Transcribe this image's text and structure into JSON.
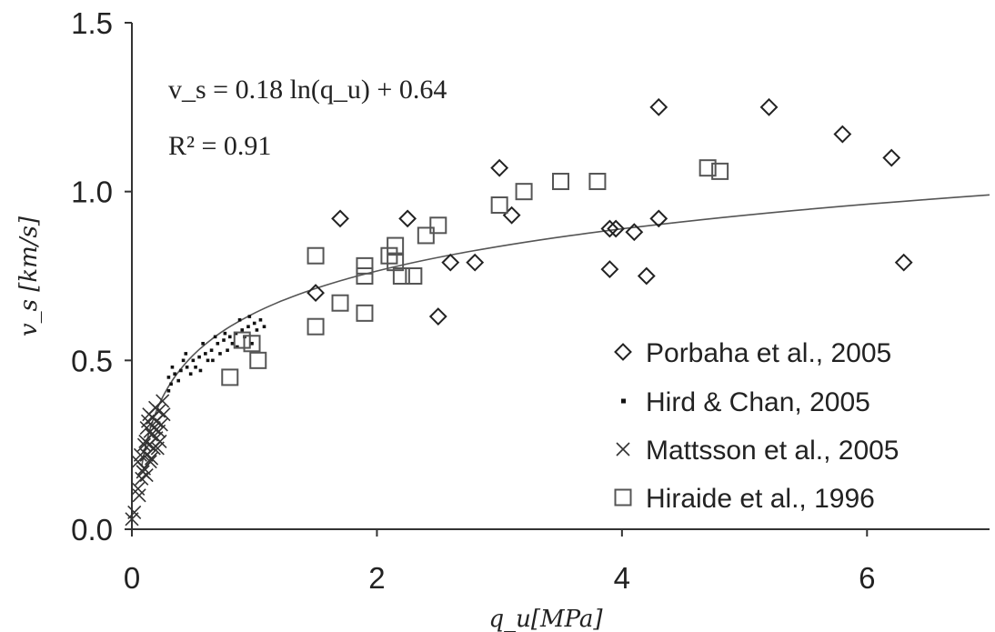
{
  "chart_data": {
    "type": "scatter",
    "title": "",
    "xlabel": "q_u[MPa]",
    "ylabel": "v_s [km/s]",
    "xlim": [
      0,
      7
    ],
    "ylim": [
      0,
      1.5
    ],
    "x_ticks": [
      "0",
      "2",
      "4",
      "6"
    ],
    "y_ticks": [
      "0.0",
      "0.5",
      "1.0",
      "1.5"
    ],
    "grid": false,
    "legend_position": "bottom-right",
    "annotations": {
      "equation": "v_s = 0.18 ln(q_u) + 0.64",
      "r_squared": "R² = 0.91"
    },
    "fit_line": {
      "name": "",
      "a": 0.18,
      "b": 0.64,
      "x_from": 0.08,
      "x_to": 7.0
    },
    "series": [
      {
        "name": "Porbaha et al., 2005",
        "marker": "diamond",
        "points": [
          [
            1.5,
            0.7
          ],
          [
            1.7,
            0.92
          ],
          [
            2.25,
            0.92
          ],
          [
            2.5,
            0.63
          ],
          [
            2.6,
            0.79
          ],
          [
            2.8,
            0.79
          ],
          [
            3.0,
            1.07
          ],
          [
            3.1,
            0.93
          ],
          [
            3.9,
            0.77
          ],
          [
            3.9,
            0.89
          ],
          [
            3.95,
            0.89
          ],
          [
            4.1,
            0.88
          ],
          [
            4.2,
            0.75
          ],
          [
            4.3,
            1.25
          ],
          [
            4.3,
            0.92
          ],
          [
            5.2,
            1.25
          ],
          [
            5.8,
            1.17
          ],
          [
            6.2,
            1.1
          ],
          [
            6.3,
            0.79
          ]
        ]
      },
      {
        "name": "Hird & Chan, 2005",
        "marker": "dot",
        "points": [
          [
            0.3,
            0.45
          ],
          [
            0.35,
            0.46
          ],
          [
            0.4,
            0.47
          ],
          [
            0.45,
            0.48
          ],
          [
            0.5,
            0.5
          ],
          [
            0.55,
            0.51
          ],
          [
            0.6,
            0.52
          ],
          [
            0.65,
            0.53
          ],
          [
            0.7,
            0.55
          ],
          [
            0.75,
            0.56
          ],
          [
            0.8,
            0.57
          ],
          [
            0.85,
            0.58
          ],
          [
            0.9,
            0.59
          ],
          [
            0.95,
            0.6
          ],
          [
            1.0,
            0.61
          ],
          [
            1.05,
            0.62
          ],
          [
            0.32,
            0.43
          ],
          [
            0.42,
            0.5
          ],
          [
            0.52,
            0.48
          ],
          [
            0.62,
            0.5
          ],
          [
            0.72,
            0.52
          ],
          [
            0.82,
            0.55
          ],
          [
            0.92,
            0.57
          ],
          [
            1.02,
            0.59
          ],
          [
            0.38,
            0.44
          ],
          [
            0.48,
            0.46
          ],
          [
            0.58,
            0.55
          ],
          [
            0.68,
            0.57
          ],
          [
            0.78,
            0.53
          ],
          [
            0.88,
            0.62
          ],
          [
            0.98,
            0.55
          ],
          [
            1.08,
            0.6
          ],
          [
            0.33,
            0.48
          ],
          [
            0.44,
            0.52
          ],
          [
            0.56,
            0.47
          ],
          [
            0.66,
            0.5
          ],
          [
            0.76,
            0.58
          ],
          [
            0.86,
            0.54
          ],
          [
            0.96,
            0.63
          ],
          [
            0.3,
            0.41
          ]
        ]
      },
      {
        "name": "Mattsson et al., 2005",
        "marker": "cross",
        "points": [
          [
            0.0,
            0.03
          ],
          [
            0.02,
            0.05
          ],
          [
            0.05,
            0.12
          ],
          [
            0.08,
            0.15
          ],
          [
            0.1,
            0.18
          ],
          [
            0.12,
            0.22
          ],
          [
            0.14,
            0.25
          ],
          [
            0.16,
            0.28
          ],
          [
            0.18,
            0.3
          ],
          [
            0.2,
            0.32
          ],
          [
            0.22,
            0.35
          ],
          [
            0.25,
            0.38
          ],
          [
            0.1,
            0.25
          ],
          [
            0.12,
            0.3
          ],
          [
            0.15,
            0.2
          ],
          [
            0.18,
            0.24
          ],
          [
            0.2,
            0.27
          ],
          [
            0.22,
            0.29
          ],
          [
            0.05,
            0.2
          ],
          [
            0.07,
            0.22
          ],
          [
            0.09,
            0.17
          ],
          [
            0.11,
            0.26
          ],
          [
            0.13,
            0.32
          ],
          [
            0.17,
            0.33
          ],
          [
            0.19,
            0.36
          ],
          [
            0.24,
            0.31
          ],
          [
            0.26,
            0.34
          ],
          [
            0.23,
            0.26
          ],
          [
            0.15,
            0.29
          ],
          [
            0.12,
            0.16
          ],
          [
            0.06,
            0.1
          ],
          [
            0.16,
            0.21
          ],
          [
            0.21,
            0.24
          ],
          [
            0.14,
            0.34
          ]
        ]
      },
      {
        "name": "Hiraide et al., 1996",
        "marker": "square",
        "points": [
          [
            0.8,
            0.45
          ],
          [
            0.9,
            0.56
          ],
          [
            0.98,
            0.55
          ],
          [
            1.03,
            0.5
          ],
          [
            1.5,
            0.81
          ],
          [
            1.5,
            0.6
          ],
          [
            1.7,
            0.67
          ],
          [
            1.9,
            0.78
          ],
          [
            1.9,
            0.75
          ],
          [
            1.9,
            0.64
          ],
          [
            2.1,
            0.81
          ],
          [
            2.15,
            0.84
          ],
          [
            2.15,
            0.79
          ],
          [
            2.2,
            0.75
          ],
          [
            2.3,
            0.75
          ],
          [
            2.4,
            0.87
          ],
          [
            2.5,
            0.9
          ],
          [
            3.0,
            0.96
          ],
          [
            3.2,
            1.0
          ],
          [
            3.5,
            1.03
          ],
          [
            3.8,
            1.03
          ],
          [
            4.7,
            1.07
          ],
          [
            4.8,
            1.06
          ]
        ]
      }
    ]
  }
}
